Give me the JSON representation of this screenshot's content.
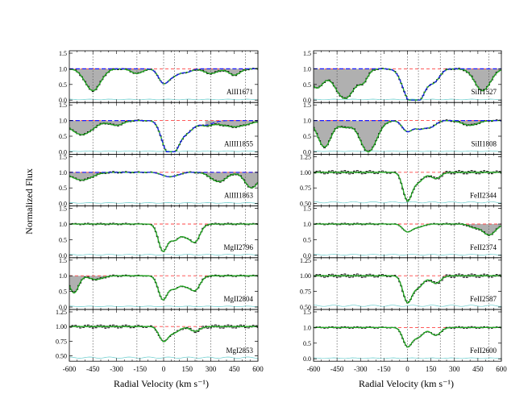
{
  "chart_data": {
    "type": "line",
    "ylabel": "Normalized Flux",
    "xlabel": "Radial Velocity (km s⁻¹)",
    "xlim": [
      -600,
      600
    ],
    "x_ticks": [
      "-600",
      "-450",
      "-300",
      "-150",
      "0",
      "150",
      "300",
      "450",
      "600"
    ],
    "colors": {
      "data": "#000000",
      "model": "#22aa22",
      "components": "#1a1aff",
      "continuum": "#ff4444",
      "error": "#66cccc",
      "shade": "#b0b0b0"
    },
    "component_velocities": [
      -450,
      -170,
      0,
      70,
      210,
      300,
      520
    ],
    "columns": [
      {
        "panels": [
          {
            "label": "AlII1671",
            "ylim": [
              0,
              1.5
            ],
            "yticks": [
              "0.0",
              "0.5",
              "1.0",
              "1.5"
            ],
            "dashed_model": true,
            "lines": [
              {
                "v": 0,
                "d": 0.45,
                "w": 45
              },
              {
                "v": 70,
                "d": 0.2,
                "w": 50
              },
              {
                "v": 150,
                "d": 0.1,
                "w": 40
              }
            ],
            "shaded": [
              {
                "v": -450,
                "d": 0.7,
                "w": 70
              },
              {
                "v": -170,
                "d": 0.15,
                "w": 50
              },
              {
                "v": 300,
                "d": 0.15,
                "w": 60
              },
              {
                "v": 450,
                "d": 0.2,
                "w": 50
              }
            ]
          },
          {
            "label": "AlIII1855",
            "ylim": [
              0,
              1.5
            ],
            "yticks": [
              "0.0",
              "0.5",
              "1.0",
              "1.5"
            ],
            "dashed_model": true,
            "lines": [
              {
                "v": 20,
                "d": 0.9,
                "w": 50
              },
              {
                "v": 80,
                "d": 0.7,
                "w": 45
              },
              {
                "v": 150,
                "d": 0.35,
                "w": 50
              },
              {
                "v": 260,
                "d": 0.15,
                "w": 70
              }
            ],
            "shaded": [
              {
                "v": -520,
                "d": 0.45,
                "w": 100
              },
              {
                "v": -300,
                "d": 0.15,
                "w": 60
              },
              {
                "v": 450,
                "d": 0.2,
                "w": 120
              }
            ]
          },
          {
            "label": "AlIII1863",
            "ylim": [
              0,
              1.5
            ],
            "yticks": [
              "0.0",
              "0.5",
              "1.0",
              "1.5"
            ],
            "dashed_model": true,
            "lines": [
              {
                "v": 20,
                "d": 0.12,
                "w": 50
              },
              {
                "v": 80,
                "d": 0.08,
                "w": 45
              }
            ],
            "shaded": [
              {
                "v": -520,
                "d": 0.25,
                "w": 90
              },
              {
                "v": 350,
                "d": 0.3,
                "w": 70
              },
              {
                "v": 560,
                "d": 0.5,
                "w": 60
              }
            ]
          },
          {
            "label": "MgII2796",
            "ylim": [
              0,
              1.5
            ],
            "yticks": [
              "0.0",
              "0.5",
              "1.0",
              "1.5"
            ],
            "dashed_model": false,
            "lines": [
              {
                "v": -5,
                "d": 0.85,
                "w": 40
              },
              {
                "v": 70,
                "d": 0.5,
                "w": 45
              },
              {
                "v": 200,
                "d": 0.55,
                "w": 45
              },
              {
                "v": 140,
                "d": 0.3,
                "w": 40
              }
            ],
            "shaded": []
          },
          {
            "label": "MgII2804",
            "ylim": [
              0,
              1.5
            ],
            "yticks": [
              "0.0",
              "0.5",
              "1.0",
              "1.5"
            ],
            "dashed_model": false,
            "lines": [
              {
                "v": -5,
                "d": 0.75,
                "w": 40
              },
              {
                "v": 70,
                "d": 0.4,
                "w": 45
              },
              {
                "v": 200,
                "d": 0.45,
                "w": 45
              },
              {
                "v": 140,
                "d": 0.25,
                "w": 40
              }
            ],
            "shaded": [
              {
                "v": -570,
                "d": 0.55,
                "w": 40
              },
              {
                "v": -430,
                "d": 0.12,
                "w": 60
              }
            ]
          },
          {
            "label": "MgI2853",
            "ylim": [
              0.45,
              1.25
            ],
            "yticks": [
              "0.50",
              "0.75",
              "1.00",
              "1.25"
            ],
            "dashed_model": false,
            "lines": [
              {
                "v": 0,
                "d": 0.25,
                "w": 40
              },
              {
                "v": 70,
                "d": 0.1,
                "w": 45
              },
              {
                "v": 200,
                "d": 0.08,
                "w": 45
              }
            ],
            "shaded": []
          }
        ]
      },
      {
        "panels": [
          {
            "label": "SiII1527",
            "ylim": [
              0,
              1.5
            ],
            "yticks": [
              "0.0",
              "0.5",
              "1.0",
              "1.5"
            ],
            "dashed_model": true,
            "lines": [
              {
                "v": 10,
                "d": 0.9,
                "w": 60
              },
              {
                "v": 80,
                "d": 0.8,
                "w": 55
              },
              {
                "v": 170,
                "d": 0.4,
                "w": 50
              }
            ],
            "shaded": [
              {
                "v": -580,
                "d": 0.6,
                "w": 60
              },
              {
                "v": -400,
                "d": 0.95,
                "w": 90
              },
              {
                "v": -280,
                "d": 0.3,
                "w": 40
              },
              {
                "v": 480,
                "d": 0.7,
                "w": 70
              }
            ]
          },
          {
            "label": "SiII1808",
            "ylim": [
              0,
              1.5
            ],
            "yticks": [
              "0.0",
              "0.5",
              "1.0",
              "1.5"
            ],
            "dashed_model": true,
            "lines": [
              {
                "v": 0,
                "d": 0.35,
                "w": 45
              },
              {
                "v": 80,
                "d": 0.25,
                "w": 45
              },
              {
                "v": 150,
                "d": 0.2,
                "w": 45
              }
            ],
            "shaded": [
              {
                "v": -530,
                "d": 0.85,
                "w": 60
              },
              {
                "v": -250,
                "d": 1.0,
                "w": 75
              },
              {
                "v": -400,
                "d": 0.2,
                "w": 50
              },
              {
                "v": 400,
                "d": 0.15,
                "w": 70
              }
            ]
          },
          {
            "label": "FeII2344",
            "ylim": [
              0.5,
              1.25
            ],
            "yticks": [
              "0.50",
              "0.75",
              "1.00",
              "1.25"
            ],
            "dashed_model": false,
            "lines": [
              {
                "v": 0,
                "d": 0.45,
                "w": 40
              },
              {
                "v": 70,
                "d": 0.15,
                "w": 45
              },
              {
                "v": 180,
                "d": 0.1,
                "w": 45
              }
            ],
            "shaded": []
          },
          {
            "label": "FeII2374",
            "ylim": [
              0,
              1.5
            ],
            "yticks": [
              "0.0",
              "0.5",
              "1.0",
              "1.5"
            ],
            "dashed_model": false,
            "lines": [
              {
                "v": 0,
                "d": 0.25,
                "w": 40
              },
              {
                "v": 70,
                "d": 0.1,
                "w": 45
              }
            ],
            "shaded": [
              {
                "v": 520,
                "d": 0.35,
                "w": 60
              },
              {
                "v": 420,
                "d": 0.1,
                "w": 40
              }
            ]
          },
          {
            "label": "FeII2587",
            "ylim": [
              0.5,
              1.25
            ],
            "yticks": [
              "0.50",
              "0.75",
              "1.00",
              "1.25"
            ],
            "dashed_model": false,
            "lines": [
              {
                "v": 0,
                "d": 0.42,
                "w": 40
              },
              {
                "v": 70,
                "d": 0.18,
                "w": 45
              },
              {
                "v": 180,
                "d": 0.12,
                "w": 45
              }
            ],
            "shaded": []
          },
          {
            "label": "FeII2600",
            "ylim": [
              0,
              1.5
            ],
            "yticks": [
              "0.0",
              "0.5",
              "1.0",
              "1.5"
            ],
            "dashed_model": false,
            "lines": [
              {
                "v": 0,
                "d": 0.6,
                "w": 40
              },
              {
                "v": 70,
                "d": 0.3,
                "w": 45
              },
              {
                "v": 180,
                "d": 0.25,
                "w": 45
              }
            ],
            "shaded": []
          }
        ]
      }
    ]
  }
}
